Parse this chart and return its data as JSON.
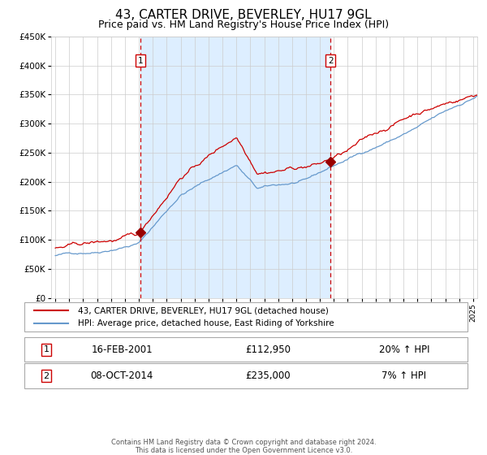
{
  "title": "43, CARTER DRIVE, BEVERLEY, HU17 9GL",
  "subtitle": "Price paid vs. HM Land Registry's House Price Index (HPI)",
  "legend_line1": "43, CARTER DRIVE, BEVERLEY, HU17 9GL (detached house)",
  "legend_line2": "HPI: Average price, detached house, East Riding of Yorkshire",
  "footer1": "Contains HM Land Registry data © Crown copyright and database right 2024.",
  "footer2": "This data is licensed under the Open Government Licence v3.0.",
  "ylim": [
    0,
    450000
  ],
  "yticks": [
    0,
    50000,
    100000,
    150000,
    200000,
    250000,
    300000,
    350000,
    400000,
    450000
  ],
  "ytick_labels": [
    "£0",
    "£50K",
    "£100K",
    "£150K",
    "£200K",
    "£250K",
    "£300K",
    "£350K",
    "£400K",
    "£450K"
  ],
  "xlim_start": 1994.7,
  "xlim_end": 2025.3,
  "xticks": [
    1995,
    1996,
    1997,
    1998,
    1999,
    2000,
    2001,
    2002,
    2003,
    2004,
    2005,
    2006,
    2007,
    2008,
    2009,
    2010,
    2011,
    2012,
    2013,
    2014,
    2015,
    2016,
    2017,
    2018,
    2019,
    2020,
    2021,
    2022,
    2023,
    2024,
    2025
  ],
  "transaction1_x": 2001.125,
  "transaction1_y": 112950,
  "transaction1_label": "16-FEB-2001",
  "transaction1_price": "£112,950",
  "transaction1_hpi": "20% ↑ HPI",
  "transaction2_x": 2014.77,
  "transaction2_y": 235000,
  "transaction2_label": "08-OCT-2014",
  "transaction2_price": "£235,000",
  "transaction2_hpi": "7% ↑ HPI",
  "shade_start": 2001.125,
  "shade_end": 2014.77,
  "line_color_red": "#cc0000",
  "line_color_blue": "#6699cc",
  "shade_color": "#ddeeff",
  "dashed_color": "#cc0000",
  "marker_color": "#990000",
  "bg_color": "#ffffff",
  "grid_color": "#cccccc",
  "box_color_edge": "#cc0000",
  "title_fontsize": 11,
  "subtitle_fontsize": 9
}
